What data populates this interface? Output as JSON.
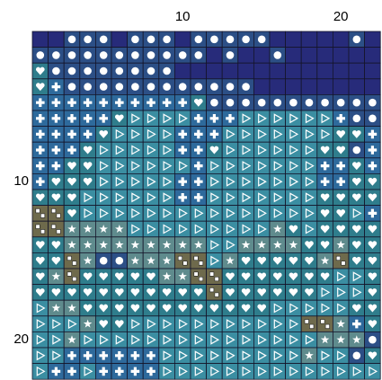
{
  "axis_labels": {
    "columns": [
      10,
      20
    ],
    "rows": [
      10,
      20
    ]
  },
  "palette": {
    "m": "#272b7a",
    "o": "#2c4f86",
    "h": "#2f7d8c",
    "p": "#2e6a9c",
    "t": "#3b8ea2",
    "s": "#5f8b8d",
    "q": "#6e6a4c"
  },
  "grid": [
    "mmooomooomooooommmmmom",
    "ooooooooooomommommmmmm",
    "hoooooooommmmmmmmmmmmm",
    "hpoooooooooooommmmmmmm",
    "pppppppppphooooooooooo",
    "ppppphttttpppttttttpoo",
    "pppphttttpppttttttthhp",
    "ppphtttttpphtttttthhop",
    "pphhttttttptttttttpphp",
    "phhhtttttpptttttttpphh",
    "hhhttttttppttttttthhhh",
    "qqhttttttttttttttthhtp",
    "qqsssstttttttttshthhhh",
    "hhsssssssssttsssshhshh",
    "hhqsoosssqqtshhhhhsqhh",
    "hsqhhhhhssqqhhhhhhhtth",
    "hhhhhhhhhhhqhhhhhhttth",
    "tsshhhhhhhhhhhhttttthh",
    "tttshhtttttttttttqqsph",
    "ttstttttttttttttttssso",
    "ttpppppptttttttttsttoh",
    "tpptpppptttttttttttttt"
  ]
}
